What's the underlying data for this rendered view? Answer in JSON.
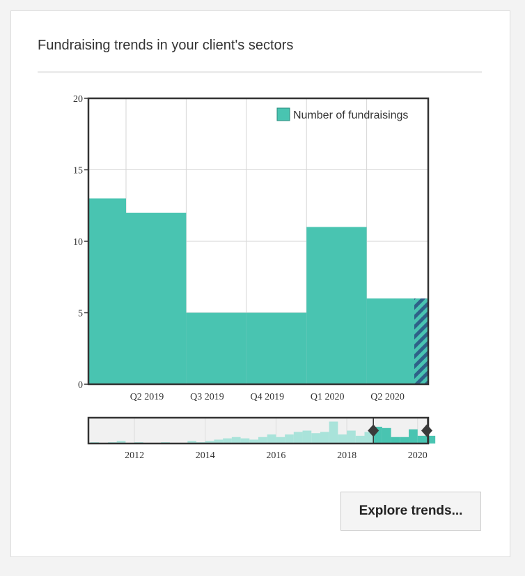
{
  "widget": {
    "title": "Fundraising trends in your client's sectors",
    "explore_button": "Explore trends..."
  },
  "colors": {
    "bar": "#49c4b1",
    "highlight": "#2e6188",
    "grid": "#d6d6d6",
    "frame": "#333333",
    "navigator_bg": "#f1f1f1",
    "navigator_bar": "#a9e3da"
  },
  "chart_data": [
    {
      "type": "area",
      "x_ticks": [
        "Q2 2019",
        "Q3 2019",
        "Q4 2019",
        "Q1 2020",
        "Q2 2020"
      ],
      "y_ticks": [
        "0",
        "5",
        "10",
        "15",
        "20"
      ],
      "ylim": [
        0,
        20
      ],
      "grid": true,
      "legend_position": "top-right",
      "series": [
        {
          "name": "Number of fundraisings",
          "points": [
            {
              "x": "Q1 2019",
              "y": 13
            },
            {
              "x": "Q2 2019",
              "y": 12
            },
            {
              "x": "Q3 2019",
              "y": 5
            },
            {
              "x": "Q4 2019",
              "y": 5
            },
            {
              "x": "Q1 2020",
              "y": 11
            },
            {
              "x": "Q2 2020",
              "y": 6
            },
            {
              "x": "Q3 2020",
              "y": 6,
              "partial": true
            }
          ]
        }
      ]
    },
    {
      "type": "area",
      "role": "navigator",
      "x_ticks": [
        "2012",
        "2014",
        "2016",
        "2018",
        "2020"
      ],
      "xlim": [
        2010.7,
        2020.3
      ],
      "ylim": [
        0,
        20
      ],
      "selected_range": [
        "Q4 2018",
        "Q3 2020"
      ],
      "points": [
        {
          "x": 2010.75,
          "y": 1
        },
        {
          "x": 2011.25,
          "y": 1
        },
        {
          "x": 2011.5,
          "y": 2
        },
        {
          "x": 2011.75,
          "y": 0
        },
        {
          "x": 2012.0,
          "y": 1
        },
        {
          "x": 2012.5,
          "y": 0
        },
        {
          "x": 2012.75,
          "y": 1
        },
        {
          "x": 2013.25,
          "y": 0
        },
        {
          "x": 2013.5,
          "y": 2
        },
        {
          "x": 2013.75,
          "y": 1
        },
        {
          "x": 2014.0,
          "y": 2
        },
        {
          "x": 2014.25,
          "y": 3
        },
        {
          "x": 2014.5,
          "y": 4
        },
        {
          "x": 2014.75,
          "y": 5
        },
        {
          "x": 2015.0,
          "y": 4
        },
        {
          "x": 2015.25,
          "y": 3
        },
        {
          "x": 2015.5,
          "y": 5
        },
        {
          "x": 2015.75,
          "y": 7
        },
        {
          "x": 2016.0,
          "y": 5
        },
        {
          "x": 2016.25,
          "y": 7
        },
        {
          "x": 2016.5,
          "y": 9
        },
        {
          "x": 2016.75,
          "y": 10
        },
        {
          "x": 2017.0,
          "y": 8
        },
        {
          "x": 2017.25,
          "y": 9
        },
        {
          "x": 2017.5,
          "y": 17
        },
        {
          "x": 2017.75,
          "y": 7
        },
        {
          "x": 2018.0,
          "y": 10
        },
        {
          "x": 2018.25,
          "y": 6
        },
        {
          "x": 2018.5,
          "y": 9
        },
        {
          "x": 2018.75,
          "y": 13
        },
        {
          "x": 2019.0,
          "y": 12
        },
        {
          "x": 2019.25,
          "y": 5
        },
        {
          "x": 2019.5,
          "y": 5
        },
        {
          "x": 2019.75,
          "y": 11
        },
        {
          "x": 2020.0,
          "y": 6
        },
        {
          "x": 2020.25,
          "y": 6
        }
      ]
    }
  ]
}
